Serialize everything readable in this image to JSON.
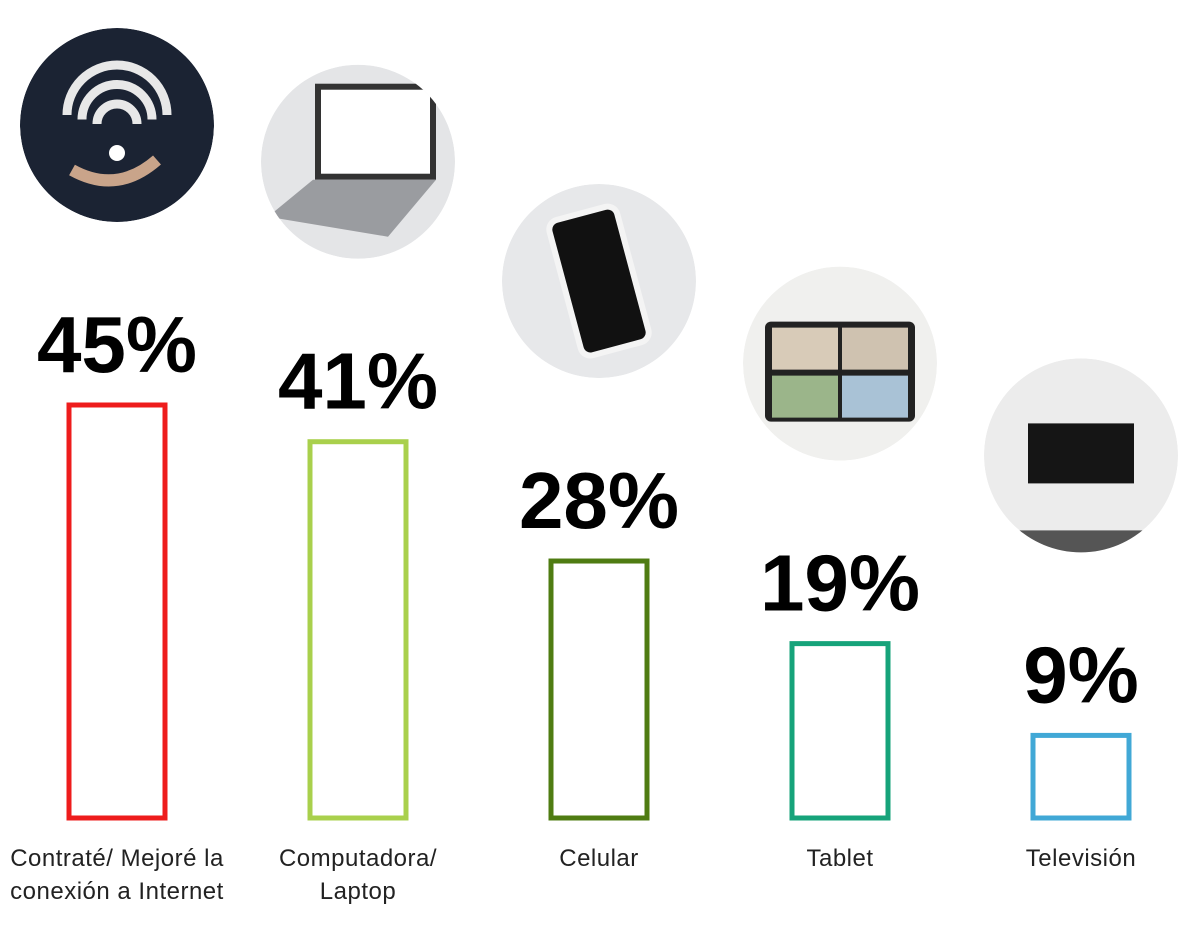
{
  "chart_data": {
    "type": "bar",
    "categories": [
      "Contraté/ Mejoré la conexión a Internet",
      "Computadora/ Laptop",
      "Celular",
      "Tablet",
      "Televisión"
    ],
    "values": [
      45,
      41,
      28,
      19,
      9
    ],
    "value_labels": [
      "45%",
      "41%",
      "28%",
      "19%",
      "9%"
    ],
    "colors": [
      "#ee1c1c",
      "#a9d04c",
      "#4f7c12",
      "#16a37a",
      "#41a8d6"
    ]
  }
}
